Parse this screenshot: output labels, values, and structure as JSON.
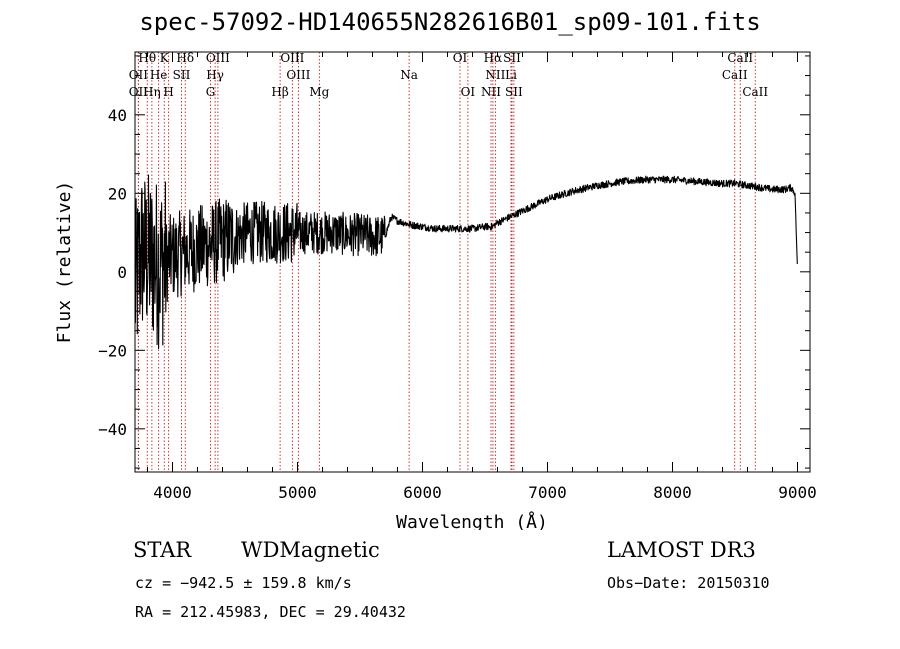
{
  "chart_data": {
    "type": "line",
    "title": "spec-57092-HD140655N282616B01_sp09-101.fits",
    "xlabel": "Wavelength (Å)",
    "ylabel": "Flux (relative)",
    "xlim": [
      3700,
      9100
    ],
    "ylim": [
      -51,
      56
    ],
    "xticks": [
      4000,
      5000,
      6000,
      7000,
      8000,
      9000
    ],
    "yticks": [
      -40,
      -20,
      0,
      20,
      40
    ],
    "series": [
      {
        "name": "flux",
        "noisy_until": 5700,
        "x": [
          3700,
          3750,
          3800,
          3850,
          3900,
          3950,
          4000,
          4100,
          4200,
          4300,
          4400,
          4500,
          4600,
          4700,
          4800,
          4900,
          5000,
          5100,
          5200,
          5300,
          5400,
          5500,
          5600,
          5700,
          5750,
          5800,
          5850,
          5900,
          6000,
          6100,
          6200,
          6300,
          6400,
          6500,
          6560,
          6600,
          6700,
          6800,
          6900,
          7000,
          7200,
          7400,
          7600,
          7800,
          8000,
          8200,
          8400,
          8500,
          8600,
          8700,
          8800,
          8900,
          8950,
          8980,
          9000
        ],
        "y": [
          -5,
          5,
          4,
          3,
          2,
          3,
          4,
          5,
          6,
          7,
          8,
          9,
          10,
          10,
          10,
          10,
          10,
          10,
          10,
          10,
          9.5,
          9.5,
          9,
          9,
          14,
          13,
          12.5,
          12,
          11.5,
          11,
          11,
          11,
          11,
          11.5,
          11.5,
          12.5,
          14,
          15.5,
          17,
          18.5,
          20.5,
          22,
          23,
          23.5,
          23.5,
          23,
          22.5,
          22.5,
          22,
          21.5,
          21,
          21,
          21.5,
          20,
          0
        ]
      }
    ],
    "lines": [
      {
        "name": "Hθ",
        "wave": 3798,
        "row": 0
      },
      {
        "name": "K",
        "wave": 3934,
        "row": 0
      },
      {
        "name": "Hδ",
        "wave": 4102,
        "row": 0
      },
      {
        "name": "OIII",
        "wave": 4363,
        "row": 0
      },
      {
        "name": "OIII",
        "wave": 4959,
        "row": 0
      },
      {
        "name": "OI",
        "wave": 6300,
        "row": 0
      },
      {
        "name": "Hα",
        "wave": 6563,
        "row": 0
      },
      {
        "name": "SII",
        "wave": 6716,
        "row": 0
      },
      {
        "name": "CaII",
        "wave": 8542,
        "row": 0
      },
      {
        "name": "OII",
        "wave": 3727,
        "row": 1
      },
      {
        "name": "He",
        "wave": 3889,
        "row": 1
      },
      {
        "name": "SII",
        "wave": 4072,
        "row": 1
      },
      {
        "name": "Hγ",
        "wave": 4341,
        "row": 1
      },
      {
        "name": "OIII",
        "wave": 5007,
        "row": 1
      },
      {
        "name": "Na",
        "wave": 5893,
        "row": 1
      },
      {
        "name": "NII",
        "wave": 6583,
        "row": 1
      },
      {
        "name": "Li",
        "wave": 6708,
        "row": 1
      },
      {
        "name": "CaII",
        "wave": 8498,
        "row": 1
      },
      {
        "name": "OII",
        "wave": 3727,
        "row": 2
      },
      {
        "name": "Hη",
        "wave": 3835,
        "row": 2
      },
      {
        "name": "H",
        "wave": 3969,
        "row": 2
      },
      {
        "name": "G",
        "wave": 4304,
        "row": 2
      },
      {
        "name": "Hβ",
        "wave": 4861,
        "row": 2
      },
      {
        "name": "Mg",
        "wave": 5175,
        "row": 2
      },
      {
        "name": "OI",
        "wave": 6363,
        "row": 2
      },
      {
        "name": "NII",
        "wave": 6548,
        "row": 2
      },
      {
        "name": "SII",
        "wave": 6731,
        "row": 2
      },
      {
        "name": "CaII",
        "wave": 8662,
        "row": 2
      }
    ]
  },
  "info": {
    "object_type": "STAR",
    "subclass": "WDMagnetic",
    "survey": "LAMOST DR3",
    "cz": "cz = −942.5 ± 159.8 km/s",
    "obs_date": "Obs−Date: 20150310",
    "radec": "RA = 212.45983, DEC =  29.40432"
  },
  "colors": {
    "axis": "#000000",
    "flux": "#000000",
    "line_marker": "#c81e1e"
  }
}
